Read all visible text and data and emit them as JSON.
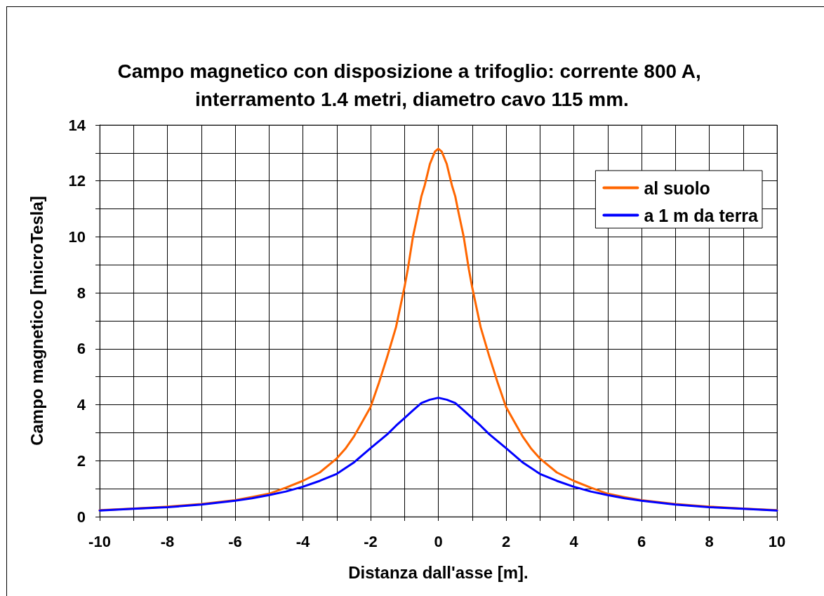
{
  "chart_data": {
    "type": "line",
    "title": "Campo magnetico con disposizione a trifoglio: corrente 800 A, interramento 1.4 metri, diametro cavo 115 mm.",
    "xlabel": "Distanza dall'asse [m].",
    "ylabel": "Campo magnetico [microTesla]",
    "series": [
      {
        "name": "al suolo",
        "color": "#ff6600",
        "x": [
          -10,
          -9,
          -8,
          -7,
          -6,
          -5.5,
          -5,
          -4.5,
          -4,
          -3.5,
          -3,
          -2.75,
          -2.5,
          -2.25,
          -2,
          -1.75,
          -1.5,
          -1.25,
          -1,
          -0.9,
          -0.75,
          -0.6,
          -0.5,
          -0.4,
          -0.25,
          -0.1,
          0,
          0.1,
          0.25,
          0.4,
          0.5,
          0.6,
          0.75,
          0.9,
          1,
          1.25,
          1.5,
          1.75,
          2,
          2.25,
          2.5,
          2.75,
          3,
          3.5,
          4,
          4.5,
          5,
          5.5,
          6,
          7,
          8,
          9,
          10
        ],
        "values": [
          0.23,
          0.29,
          0.36,
          0.45,
          0.59,
          0.7,
          0.82,
          1.04,
          1.28,
          1.58,
          2.08,
          2.42,
          2.85,
          3.38,
          3.92,
          4.8,
          5.75,
          6.77,
          8.2,
          8.85,
          10.0,
          10.85,
          11.45,
          11.85,
          12.6,
          13.05,
          13.15,
          13.05,
          12.6,
          11.85,
          11.45,
          10.85,
          10.0,
          8.85,
          8.2,
          6.77,
          5.75,
          4.8,
          3.92,
          3.38,
          2.85,
          2.42,
          2.08,
          1.58,
          1.28,
          1.04,
          0.82,
          0.7,
          0.59,
          0.45,
          0.36,
          0.29,
          0.23
        ]
      },
      {
        "name": "a 1 m da terra",
        "color": "#0000ff",
        "x": [
          -10,
          -9,
          -8,
          -7,
          -6,
          -5.5,
          -5,
          -4.5,
          -4,
          -3.5,
          -3,
          -2.5,
          -2,
          -1.75,
          -1.5,
          -1.25,
          -1,
          -0.75,
          -0.5,
          -0.25,
          0,
          0.25,
          0.5,
          0.75,
          1,
          1.25,
          1.5,
          1.75,
          2,
          2.5,
          3,
          3.5,
          4,
          4.5,
          5,
          5.5,
          6,
          7,
          8,
          9,
          10
        ],
        "values": [
          0.22,
          0.28,
          0.34,
          0.43,
          0.57,
          0.66,
          0.77,
          0.9,
          1.07,
          1.28,
          1.53,
          1.93,
          2.45,
          2.7,
          2.95,
          3.25,
          3.52,
          3.8,
          4.06,
          4.18,
          4.25,
          4.18,
          4.06,
          3.8,
          3.52,
          3.25,
          2.95,
          2.7,
          2.45,
          1.93,
          1.53,
          1.28,
          1.07,
          0.9,
          0.77,
          0.66,
          0.57,
          0.43,
          0.34,
          0.28,
          0.22
        ]
      }
    ],
    "xlim": [
      -10,
      10
    ],
    "xticks": [
      -10,
      {
        "value": -9,
        "label": null
      },
      -8,
      {
        "value": -7,
        "label": null
      },
      -6,
      {
        "value": -5,
        "label": null
      },
      -4,
      {
        "value": -3,
        "label": null
      },
      -2,
      {
        "value": -1,
        "label": null
      },
      0,
      {
        "value": 1,
        "label": null
      },
      2,
      {
        "value": 3,
        "label": null
      },
      4,
      {
        "value": 5,
        "label": null
      },
      6,
      {
        "value": 7,
        "label": null
      },
      8,
      {
        "value": 9,
        "label": null
      },
      10
    ],
    "ylim": [
      0,
      14
    ],
    "yticks": [
      0,
      {
        "value": 1,
        "label": null
      },
      2,
      {
        "value": 3,
        "label": null
      },
      4,
      {
        "value": 5,
        "label": null
      },
      6,
      {
        "value": 7,
        "label": null
      },
      8,
      {
        "value": 9,
        "label": null
      },
      10,
      {
        "value": 11,
        "label": null
      },
      12,
      {
        "value": 13,
        "label": null
      },
      14
    ],
    "grid": true,
    "legend": "top right",
    "marker": "none",
    "line_style": "solid"
  }
}
